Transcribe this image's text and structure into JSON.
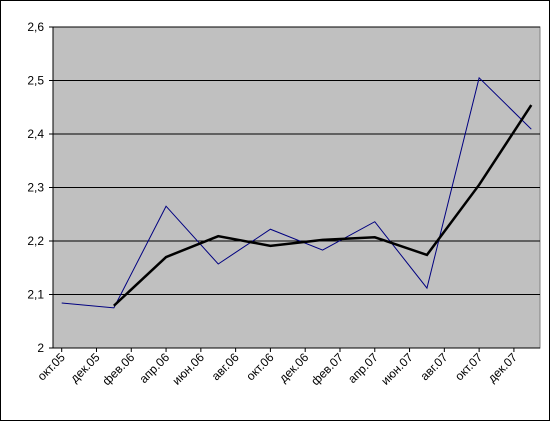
{
  "chart_data": {
    "type": "line",
    "x": [
      0,
      3,
      6,
      9,
      12,
      15,
      18,
      21,
      24,
      27
    ],
    "xlim": [
      -0.5,
      27.5
    ],
    "xticks": [
      {
        "value": 0,
        "label": "окт.05"
      },
      {
        "value": 2,
        "label": "дек.05"
      },
      {
        "value": 4,
        "label": "фев.06"
      },
      {
        "value": 6,
        "label": "апр.06"
      },
      {
        "value": 8,
        "label": "июн.06"
      },
      {
        "value": 10,
        "label": "авг.06"
      },
      {
        "value": 12,
        "label": "окт.06"
      },
      {
        "value": 14,
        "label": "дек.06"
      },
      {
        "value": 16,
        "label": "фев.07"
      },
      {
        "value": 18,
        "label": "апр.07"
      },
      {
        "value": 20,
        "label": "июн.07"
      },
      {
        "value": 22,
        "label": "авг.07"
      },
      {
        "value": 24,
        "label": "окт.07"
      },
      {
        "value": 26,
        "label": "дек.07"
      }
    ],
    "ylim": [
      2,
      2.6
    ],
    "yticks": [
      2,
      {
        "value": 2.1,
        "label": "2,1"
      },
      {
        "value": 2.2,
        "label": "2,2"
      },
      {
        "value": 2.3,
        "label": "2,3"
      },
      {
        "value": 2.4,
        "label": "2,4"
      },
      {
        "value": 2.5,
        "label": "2,5"
      },
      {
        "value": 2.6,
        "label": "2,6"
      }
    ],
    "grid": true,
    "series": [
      {
        "color": "#000080",
        "width": 1,
        "values": [
          2.084,
          2.075,
          2.265,
          2.157,
          2.222,
          2.183,
          2.236,
          2.112,
          2.505,
          2.409
        ]
      },
      {
        "color": "#000000",
        "width": 2.5,
        "values": [
          null,
          2.079,
          2.17,
          2.209,
          2.191,
          2.202,
          2.207,
          2.174,
          2.305,
          2.454
        ]
      }
    ]
  }
}
